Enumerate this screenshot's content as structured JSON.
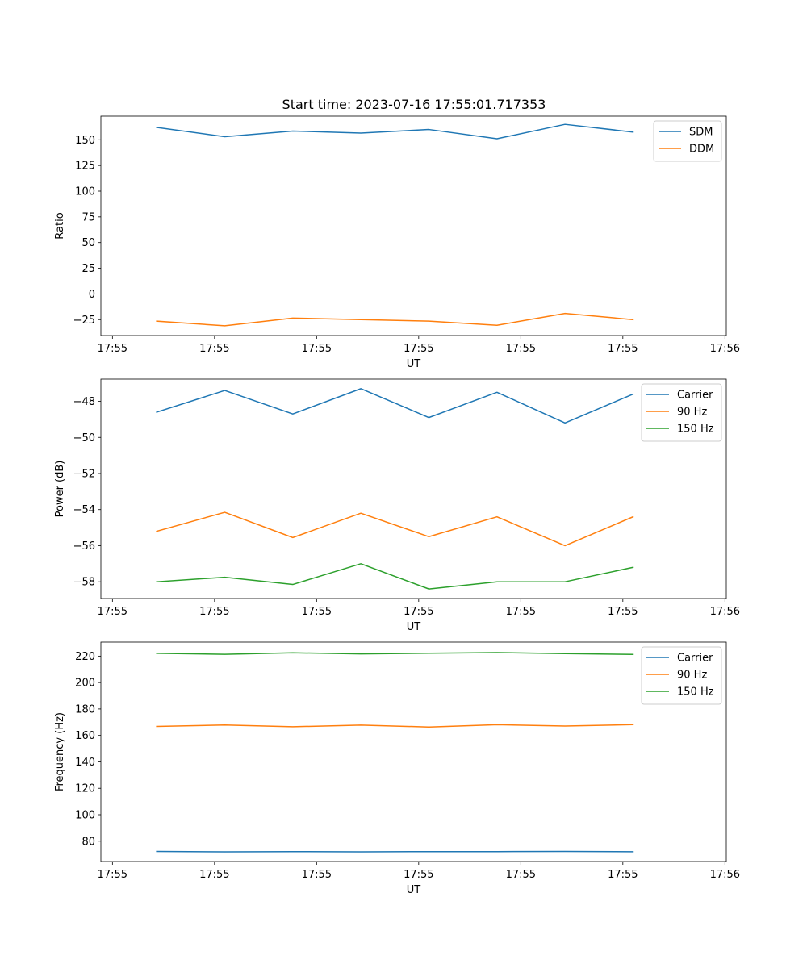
{
  "figure": {
    "title": "Start time: 2023-07-16 17:55:01.717353"
  },
  "colors": {
    "tab_blue": "#1f77b4",
    "tab_orange": "#ff7f0e",
    "tab_green": "#2ca02c"
  },
  "chart_data": [
    {
      "type": "line",
      "title": "Start time: 2023-07-16 17:55:01.717353",
      "xlabel": "UT",
      "ylabel": "Ratio",
      "x": [
        1,
        2,
        3,
        4,
        5,
        6,
        7,
        8
      ],
      "xlim": [
        0.18,
        9.37
      ],
      "x_ticks": [
        0.35,
        1.85,
        3.35,
        4.85,
        6.35,
        7.85,
        9.35
      ],
      "x_tick_labels": [
        "17:55",
        "17:55",
        "17:55",
        "17:55",
        "17:55",
        "17:55",
        "17:56"
      ],
      "ylim": [
        -40.5,
        173
      ],
      "y_ticks": [
        -25,
        0,
        25,
        50,
        75,
        100,
        125,
        150
      ],
      "y_tick_labels": [
        "−25",
        "0",
        "25",
        "50",
        "75",
        "100",
        "125",
        "150"
      ],
      "legend_position": "upper right",
      "series": [
        {
          "name": "SDM",
          "color": "#1f77b4",
          "values": [
            162,
            153,
            158.5,
            156.5,
            160,
            151,
            165,
            157.5
          ]
        },
        {
          "name": "DDM",
          "color": "#ff7f0e",
          "values": [
            -26.5,
            -31,
            -23.5,
            -25,
            -26.5,
            -30.5,
            -19,
            -25
          ]
        }
      ]
    },
    {
      "type": "line",
      "xlabel": "UT",
      "ylabel": "Power (dB)",
      "x": [
        1,
        2,
        3,
        4,
        5,
        6,
        7,
        8
      ],
      "xlim": [
        0.18,
        9.37
      ],
      "x_ticks": [
        0.35,
        1.85,
        3.35,
        4.85,
        6.35,
        7.85,
        9.35
      ],
      "x_tick_labels": [
        "17:55",
        "17:55",
        "17:55",
        "17:55",
        "17:55",
        "17:55",
        "17:56"
      ],
      "ylim": [
        -58.93,
        -46.77
      ],
      "y_ticks": [
        -58,
        -56,
        -54,
        -52,
        -50,
        -48
      ],
      "y_tick_labels": [
        "−58",
        "−56",
        "−54",
        "−52",
        "−50",
        "−48"
      ],
      "legend_position": "upper right",
      "series": [
        {
          "name": "Carrier",
          "color": "#1f77b4",
          "values": [
            -48.6,
            -47.4,
            -48.7,
            -47.3,
            -48.9,
            -47.5,
            -49.2,
            -47.6
          ]
        },
        {
          "name": "90 Hz",
          "color": "#ff7f0e",
          "values": [
            -55.2,
            -54.15,
            -55.55,
            -54.2,
            -55.5,
            -54.4,
            -56,
            -54.4
          ]
        },
        {
          "name": "150 Hz",
          "color": "#2ca02c",
          "values": [
            -58,
            -57.75,
            -58.15,
            -57,
            -58.4,
            -58,
            -58,
            -57.2
          ]
        }
      ]
    },
    {
      "type": "line",
      "xlabel": "UT",
      "ylabel": "Frequency (Hz)",
      "x": [
        1,
        2,
        3,
        4,
        5,
        6,
        7,
        8
      ],
      "xlim": [
        0.18,
        9.37
      ],
      "x_ticks": [
        0.35,
        1.85,
        3.35,
        4.85,
        6.35,
        7.85,
        9.35
      ],
      "x_tick_labels": [
        "17:55",
        "17:55",
        "17:55",
        "17:55",
        "17:55",
        "17:55",
        "17:56"
      ],
      "ylim": [
        64.6,
        230.6
      ],
      "y_ticks": [
        80,
        100,
        120,
        140,
        160,
        180,
        200,
        220
      ],
      "y_tick_labels": [
        "80",
        "100",
        "120",
        "140",
        "160",
        "180",
        "200",
        "220"
      ],
      "legend_position": "upper right",
      "series": [
        {
          "name": "Carrier",
          "color": "#1f77b4",
          "values": [
            72.2,
            71.9,
            72.1,
            71.9,
            72.1,
            72.1,
            72.2,
            72
          ]
        },
        {
          "name": "90 Hz",
          "color": "#ff7f0e",
          "values": [
            166.8,
            167.9,
            166.6,
            167.8,
            166.4,
            168.1,
            167.1,
            168.2
          ]
        },
        {
          "name": "150 Hz",
          "color": "#2ca02c",
          "values": [
            222.1,
            221.4,
            222.5,
            221.7,
            222.2,
            222.7,
            221.9,
            221.3
          ]
        }
      ]
    }
  ]
}
